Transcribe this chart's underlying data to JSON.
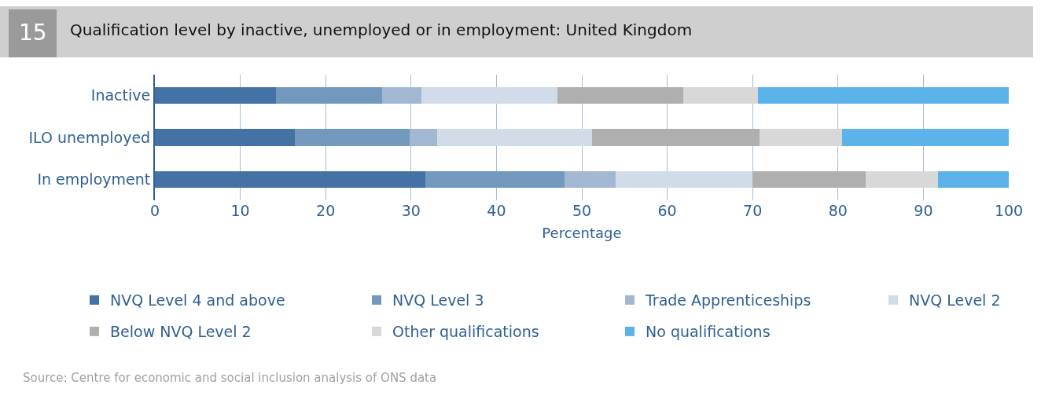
{
  "chart_data": {
    "type": "bar",
    "orientation": "horizontal",
    "stacked": true,
    "title": "Qualification level by inactive, unemployed or in employment: United Kingdom",
    "xlabel": "Percentage",
    "categories": [
      "Inactive",
      "ILO unemployed",
      "In employment"
    ],
    "series": [
      {
        "name": "NVQ Level 4 and above",
        "color": "#4472a5",
        "values": [
          14.2,
          16.4,
          31.7
        ]
      },
      {
        "name": "NVQ Level 3",
        "color": "#7398bd",
        "values": [
          12.4,
          13.4,
          16.3
        ]
      },
      {
        "name": "Trade Apprenticeships",
        "color": "#a2b8d2",
        "values": [
          4.6,
          3.3,
          6.0
        ]
      },
      {
        "name": "NVQ Level 2",
        "color": "#d0dce8",
        "values": [
          15.9,
          18.1,
          16.0
        ]
      },
      {
        "name": "Below NVQ Level 2",
        "color": "#afafaf",
        "values": [
          14.8,
          19.6,
          13.2
        ]
      },
      {
        "name": "Other qualifications",
        "color": "#d8d8d8",
        "values": [
          8.7,
          9.7,
          8.5
        ]
      },
      {
        "name": "No qualifications",
        "color": "#5bb3e9",
        "values": [
          29.4,
          19.5,
          8.3
        ]
      }
    ],
    "xlim": [
      0,
      100
    ],
    "xticks": [
      0,
      10,
      20,
      30,
      40,
      50,
      60,
      70,
      80,
      90,
      100
    ],
    "grid": "x",
    "legend": "bottom",
    "annotations": [
      "15",
      "Source: Centre for economic and social inclusion analysis of ONS data"
    ]
  }
}
